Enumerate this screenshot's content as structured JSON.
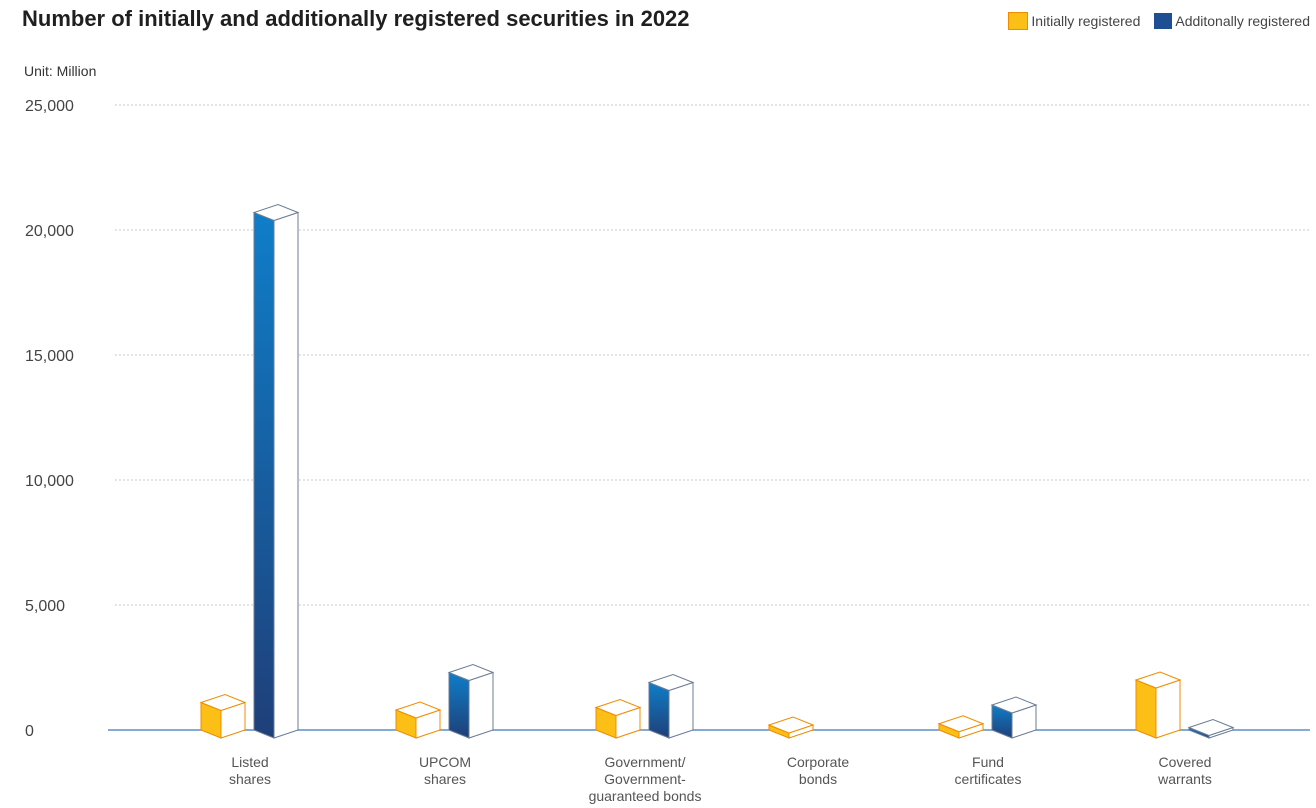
{
  "header": {
    "title": "Number of initially and additionally registered securities in 2022",
    "unit": "Unit: Million"
  },
  "legend": {
    "items": [
      {
        "label": "Initially registered",
        "color": "#fbbf16"
      },
      {
        "label": "Additonally registered",
        "color": "#1e4f92"
      }
    ]
  },
  "colors": {
    "initial_front": "#fbbf16",
    "initial_edge": "#f08c00",
    "additional_top": "#0f7ec9",
    "additional_bottom": "#1f3f78",
    "baseline": "#5b8fc9",
    "grid": "#c8c8c8"
  },
  "chart_data": {
    "type": "bar",
    "title": "Number of initially and additionally registered securities in 2022",
    "ylabel": "Unit: Million",
    "xlabel": "",
    "ylim": [
      0,
      25000
    ],
    "yticks": [
      0,
      5000,
      10000,
      15000,
      20000,
      25000
    ],
    "ytick_labels": [
      "0",
      "5,000",
      "10,000",
      "15,000",
      "20,000",
      "25,000"
    ],
    "grid": true,
    "legend_position": "top-right",
    "categories": [
      "Listed\nshares",
      "UPCOM\nshares",
      "Government/\nGovernment-\nguaranteed bonds",
      "Corporate\nbonds",
      "Fund\ncertificates",
      "Covered\nwarrants"
    ],
    "series": [
      {
        "name": "Initially registered",
        "values": [
          1100,
          800,
          900,
          200,
          250,
          2000
        ]
      },
      {
        "name": "Additonally registered",
        "values": [
          20700,
          2300,
          1900,
          0,
          1000,
          100
        ]
      }
    ]
  }
}
